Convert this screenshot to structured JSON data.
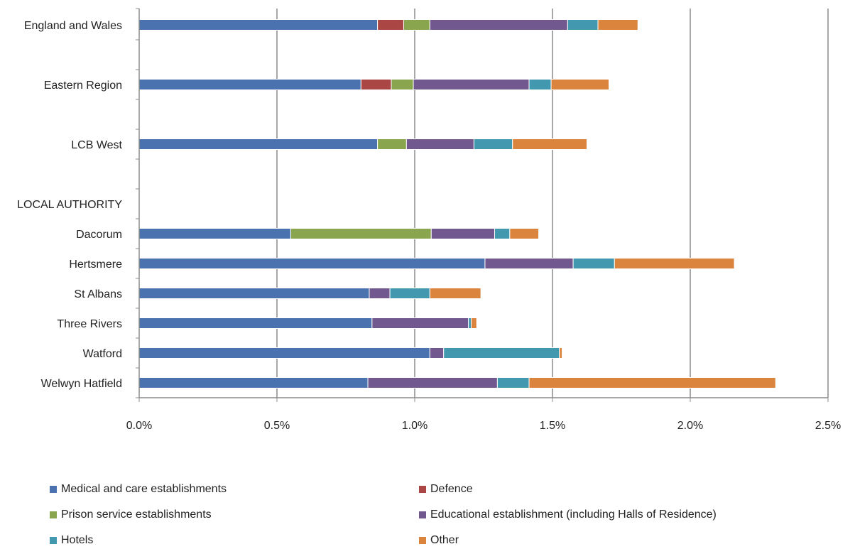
{
  "chart_data": {
    "type": "bar",
    "orientation": "horizontal",
    "stacked": true,
    "categories": [
      "England and Wales",
      "Eastern Region",
      "LCB West",
      "LOCAL AUTHORITY",
      "Dacorum",
      "Hertsmere",
      "St Albans",
      "Three Rivers",
      "Watford",
      "Welwyn Hatfield"
    ],
    "xlim": [
      0,
      0.025
    ],
    "xticks": [
      "0.0%",
      "0.5%",
      "1.0%",
      "1.5%",
      "2.0%",
      "2.5%"
    ],
    "grid": true,
    "legend_position": "bottom",
    "series": [
      {
        "name": "Medical and care establishments",
        "color": "#4A72AE",
        "values": [
          0.00865,
          0.00805,
          0.00865,
          null,
          0.0055,
          0.01255,
          0.00835,
          0.00845,
          0.01055,
          0.0083
        ]
      },
      {
        "name": "Defence",
        "color": "#AA4643",
        "values": [
          0.00095,
          0.0011,
          0,
          null,
          0,
          0,
          0,
          0,
          0,
          0
        ]
      },
      {
        "name": "Prison service establishments",
        "color": "#89A54E",
        "values": [
          0.00095,
          0.0008,
          0.00105,
          null,
          0.0051,
          0,
          0,
          0,
          0,
          0
        ]
      },
      {
        "name": "Educational establishment (including Halls of Residence)",
        "color": "#71588F",
        "values": [
          0.005,
          0.0042,
          0.00245,
          null,
          0.0023,
          0.0032,
          0.00075,
          0.0035,
          0.0005,
          0.0047
        ]
      },
      {
        "name": "Hotels",
        "color": "#4198AF",
        "values": [
          0.0011,
          0.0008,
          0.0014,
          null,
          0.00055,
          0.0015,
          0.00145,
          0.0001,
          0.0042,
          0.00115
        ]
      },
      {
        "name": "Other",
        "color": "#DB843D",
        "values": [
          0.00145,
          0.0021,
          0.0027,
          null,
          0.00105,
          0.00435,
          0.00185,
          0.0002,
          0.0001,
          0.00895
        ]
      }
    ]
  }
}
